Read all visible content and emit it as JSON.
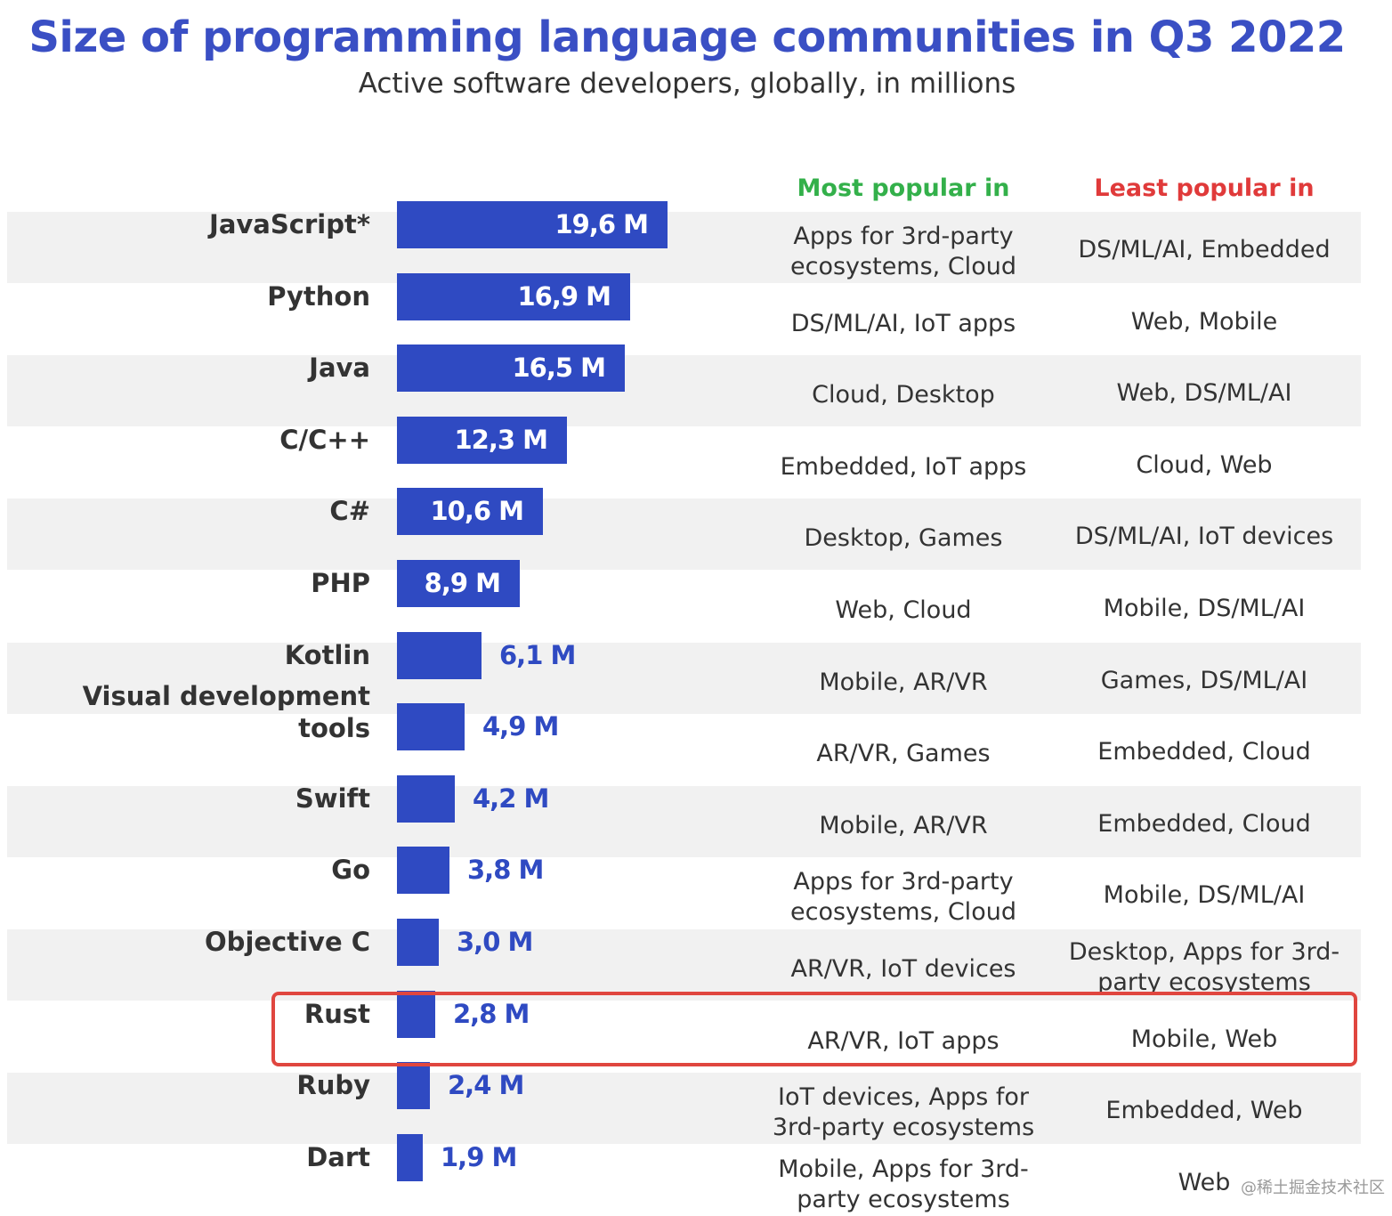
{
  "title": "Size of programming language communities in Q3 2022",
  "subtitle": "Active software developers, globally, in millions",
  "columns": {
    "most_popular": "Most popular in",
    "least_popular": "Least popular in"
  },
  "colors": {
    "title": "#3a4fc4",
    "bar": "#2f4ac2",
    "most_popular_header": "#33b04a",
    "least_popular_header": "#e03a3a",
    "row_shade": "#f1f1f1",
    "highlight_border": "#e0463f"
  },
  "highlighted_language": "Rust",
  "watermark": "@稀土掘金技术社区",
  "chart_data": {
    "type": "bar",
    "orientation": "horizontal",
    "title": "Size of programming language communities in Q3 2022",
    "subtitle": "Active software developers, globally, in millions",
    "categories": [
      "JavaScript*",
      "Python",
      "Java",
      "C/C++",
      "C#",
      "PHP",
      "Kotlin",
      "Visual development tools",
      "Swift",
      "Go",
      "Objective C",
      "Rust",
      "Ruby",
      "Dart"
    ],
    "values": [
      19.6,
      16.9,
      16.5,
      12.3,
      10.6,
      8.9,
      6.1,
      4.9,
      4.2,
      3.8,
      3.0,
      2.8,
      2.4,
      1.9
    ],
    "value_labels": [
      "19,6 M",
      "16,9 M",
      "16,5 M",
      "12,3 M",
      "10,6 M",
      "8,9 M",
      "6,1 M",
      "4,9 M",
      "4,2 M",
      "3,8 M",
      "3,0 M",
      "2,8 M",
      "2,4 M",
      "1,9 M"
    ],
    "most_popular_in": [
      "Apps for 3rd-party ecosystems, Cloud",
      "DS/ML/AI, IoT apps",
      "Cloud, Desktop",
      "Embedded, IoT apps",
      "Desktop, Games",
      "Web, Cloud",
      "Mobile, AR/VR",
      "AR/VR, Games",
      "Mobile, AR/VR",
      "Apps for 3rd-party ecosystems, Cloud",
      "AR/VR, IoT devices",
      "AR/VR, IoT apps",
      "IoT devices, Apps for 3rd-party ecosystems",
      "Mobile, Apps for 3rd-party ecosystems"
    ],
    "least_popular_in": [
      "DS/ML/AI, Embedded",
      "Web, Mobile",
      "Web, DS/ML/AI",
      "Cloud, Web",
      "DS/ML/AI, IoT devices",
      "Mobile, DS/ML/AI",
      "Games, DS/ML/AI",
      "Embedded, Cloud",
      "Embedded, Cloud",
      "Mobile, DS/ML/AI",
      "Desktop, Apps for 3rd-party ecosystems",
      "Mobile, Web",
      "Embedded, Web",
      "Web"
    ],
    "xlim": [
      0,
      19.6
    ],
    "grid": false,
    "legend": "none"
  }
}
